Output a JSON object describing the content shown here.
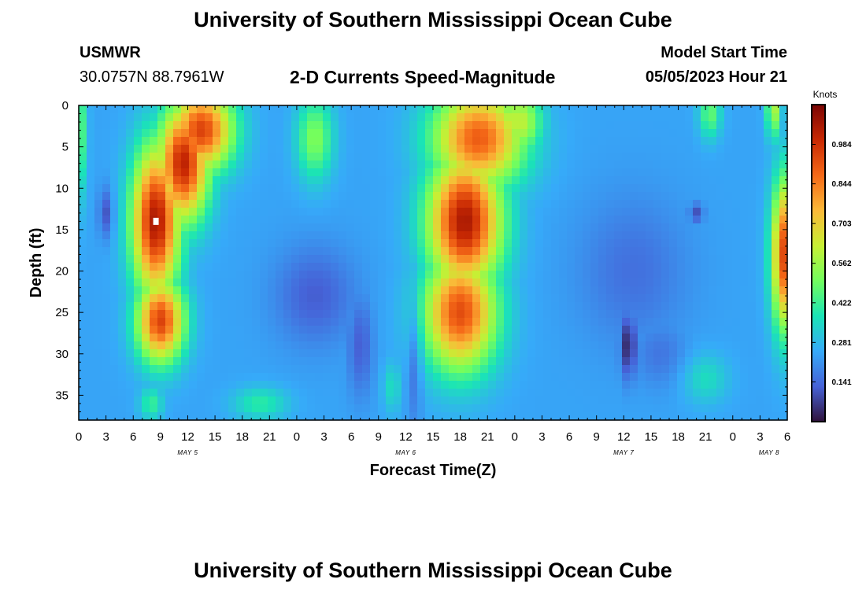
{
  "header": {
    "title": "University of Southern Mississippi Ocean Cube",
    "station": "USMWR",
    "coords": "30.0757N  88.7961W",
    "subtitle": "2-D Currents Speed-Magnitude",
    "model_start_label": "Model Start Time",
    "model_start_value": "05/05/2023 Hour 21"
  },
  "footer": {
    "title": "University of Southern Mississippi Ocean Cube"
  },
  "chart_data": {
    "type": "heatmap",
    "xlabel": "Forecast Time(Z)",
    "ylabel": "Depth (ft)",
    "x_ticks": [
      "0",
      "3",
      "6",
      "9",
      "12",
      "15",
      "18",
      "21",
      "0",
      "3",
      "6",
      "9",
      "12",
      "15",
      "18",
      "21",
      "0",
      "3",
      "6",
      "9",
      "12",
      "15",
      "18",
      "21",
      "0",
      "3",
      "6"
    ],
    "x_range_hours": [
      0,
      78
    ],
    "date_labels": [
      {
        "label": "MAY 5",
        "hour": 12
      },
      {
        "label": "MAY 6",
        "hour": 36
      },
      {
        "label": "MAY 7",
        "hour": 60
      },
      {
        "label": "MAY 8",
        "hour": 76
      }
    ],
    "y_ticks": [
      "0",
      "5",
      "10",
      "15",
      "20",
      "25",
      "30",
      "35"
    ],
    "y_values": [
      0,
      5,
      10,
      15,
      20,
      25,
      30,
      35
    ],
    "ylim": [
      38,
      0
    ],
    "colorbar": {
      "label": "Knots",
      "ticks": [
        "0.984",
        "0.844",
        "0.703",
        "0.562",
        "0.422",
        "0.281",
        "0.141"
      ],
      "tick_values": [
        0.984,
        0.844,
        0.703,
        0.562,
        0.422,
        0.281,
        0.141
      ],
      "range": [
        0.0,
        1.125
      ]
    },
    "grid": false,
    "features": [
      {
        "type": "max",
        "hour": 8.5,
        "depth": 14,
        "speed": 1.05,
        "sx": 2.6,
        "sy": 9
      },
      {
        "type": "max",
        "hour": 11.5,
        "depth": 7,
        "speed": 1.02,
        "sx": 2.8,
        "sy": 7
      },
      {
        "type": "max",
        "hour": 13.5,
        "depth": 3,
        "speed": 0.95,
        "sx": 3.5,
        "sy": 5
      },
      {
        "type": "max",
        "hour": 9.0,
        "depth": 26,
        "speed": 0.95,
        "sx": 2.6,
        "sy": 5
      },
      {
        "type": "max",
        "hour": 26.0,
        "depth": 4,
        "speed": 0.52,
        "sx": 2.0,
        "sy": 5
      },
      {
        "type": "max",
        "hour": 0.0,
        "depth": 3,
        "speed": 0.5,
        "sx": 0.8,
        "sy": 8
      },
      {
        "type": "max",
        "hour": 42.5,
        "depth": 14,
        "speed": 1.05,
        "sx": 4.0,
        "sy": 8
      },
      {
        "type": "max",
        "hour": 42.0,
        "depth": 25,
        "speed": 0.93,
        "sx": 4.0,
        "sy": 7
      },
      {
        "type": "max",
        "hour": 44.0,
        "depth": 4,
        "speed": 0.9,
        "sx": 5.0,
        "sy": 6
      },
      {
        "type": "max",
        "hour": 48.5,
        "depth": 2,
        "speed": 0.62,
        "sx": 2.5,
        "sy": 4
      },
      {
        "type": "max",
        "hour": 77.8,
        "depth": 18,
        "speed": 0.95,
        "sx": 1.5,
        "sy": 9
      },
      {
        "type": "max",
        "hour": 76.5,
        "depth": 0,
        "speed": 0.6,
        "sx": 0.8,
        "sy": 4
      },
      {
        "type": "max",
        "hour": 69.5,
        "depth": 1,
        "speed": 0.48,
        "sx": 1.2,
        "sy": 3
      },
      {
        "type": "max",
        "hour": 8.0,
        "depth": 36,
        "speed": 0.42,
        "sx": 1.3,
        "sy": 2
      },
      {
        "type": "max",
        "hour": 20.0,
        "depth": 36,
        "speed": 0.4,
        "sx": 3.0,
        "sy": 2
      },
      {
        "type": "max",
        "hour": 34.5,
        "depth": 34,
        "speed": 0.36,
        "sx": 1.0,
        "sy": 3
      },
      {
        "type": "max",
        "hour": 69.0,
        "depth": 33,
        "speed": 0.36,
        "sx": 2.5,
        "sy": 3
      },
      {
        "type": "min",
        "hour": 3.0,
        "depth": 13,
        "speed": 0.1,
        "sx": 0.8,
        "sy": 3
      },
      {
        "type": "min",
        "hour": 26.0,
        "depth": 23,
        "speed": 0.12,
        "sx": 4.5,
        "sy": 6
      },
      {
        "type": "min",
        "hour": 31.0,
        "depth": 29,
        "speed": 0.12,
        "sx": 1.4,
        "sy": 6
      },
      {
        "type": "min",
        "hour": 37.0,
        "depth": 30,
        "speed": 0.12,
        "sx": 0.8,
        "sy": 8
      },
      {
        "type": "min",
        "hour": 60.5,
        "depth": 29,
        "speed": 0.03,
        "sx": 0.9,
        "sy": 4
      },
      {
        "type": "min",
        "hour": 61.0,
        "depth": 20,
        "speed": 0.15,
        "sx": 6.0,
        "sy": 9
      },
      {
        "type": "min",
        "hour": 68.0,
        "depth": 13,
        "speed": 0.1,
        "sx": 0.8,
        "sy": 1.2
      },
      {
        "type": "min",
        "hour": 64.0,
        "depth": 30,
        "speed": 0.16,
        "sx": 3.0,
        "sy": 4
      }
    ]
  },
  "colors": {
    "colormap": [
      "#30123b",
      "#4662d7",
      "#36aaf9",
      "#1ae4b6",
      "#72fe5e",
      "#c7ef34",
      "#fbb938",
      "#f56918",
      "#c92903",
      "#7a0403"
    ],
    "marker": "#ffffff"
  }
}
